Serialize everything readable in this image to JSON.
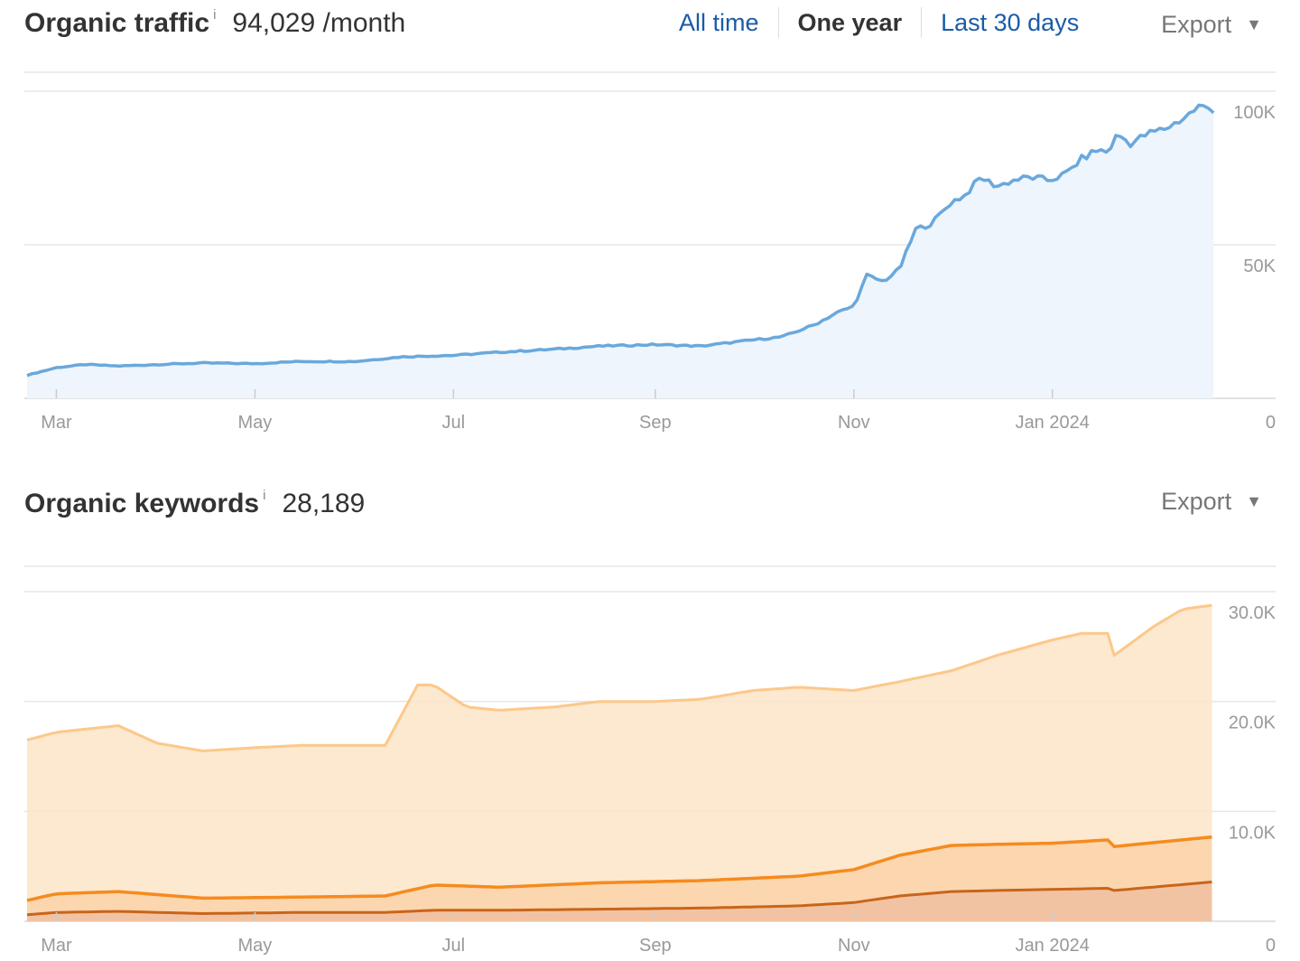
{
  "traffic_panel": {
    "title": "Organic traffic",
    "info": "i",
    "metric": "94,029 /month",
    "range_tabs": [
      {
        "label": "All time",
        "active": false
      },
      {
        "label": "One year",
        "active": true
      },
      {
        "label": "Last 30 days",
        "active": false
      }
    ],
    "export_label": "Export",
    "caret_icon": "caret-down-icon"
  },
  "keywords_panel": {
    "title": "Organic keywords",
    "info": "i",
    "metric": "28,189",
    "export_label": "Export",
    "caret_icon": "caret-down-icon"
  },
  "colors": {
    "traffic_line": "#6aa8dc",
    "traffic_fill": "#eef5fd",
    "kw_top": "#fcc88a",
    "kw_top_fill": "#fde4c8",
    "kw_mid": "#f58b1e",
    "kw_mid_fill": "#fcd2a8",
    "kw_low": "#c8651b",
    "kw_low_fill": "#f0bfa0",
    "grid": "#e6e6e6",
    "axis_text": "#999999",
    "link": "#1a5ba8"
  },
  "chart_data": [
    {
      "type": "area",
      "title": "Organic traffic",
      "x_ticks": [
        "Mar",
        "May",
        "Jul",
        "Sep",
        "Nov",
        "Jan 2024"
      ],
      "x_tick_dates": [
        "2023-03-01",
        "2023-05-01",
        "2023-07-01",
        "2023-09-01",
        "2023-11-01",
        "2024-01-01"
      ],
      "y_ticks": [
        "0",
        "50K",
        "100K"
      ],
      "y_tick_values": [
        0,
        50000,
        100000
      ],
      "ylim": [
        0,
        100000
      ],
      "xlim": [
        "2023-02-20",
        "2024-02-20"
      ],
      "grid": true,
      "series": [
        {
          "x": [
            "2023-02-20",
            "2023-03-01",
            "2023-03-10",
            "2023-03-20",
            "2023-04-01",
            "2023-04-15",
            "2023-05-01",
            "2023-05-15",
            "2023-06-01",
            "2023-06-15",
            "2023-07-01",
            "2023-07-15",
            "2023-08-01",
            "2023-08-15",
            "2023-09-01",
            "2023-09-15",
            "2023-10-01",
            "2023-10-10",
            "2023-10-20",
            "2023-10-27",
            "2023-11-01",
            "2023-11-05",
            "2023-11-10",
            "2023-11-15",
            "2023-11-20",
            "2023-11-25",
            "2023-12-01",
            "2023-12-05",
            "2023-12-10",
            "2023-12-15",
            "2023-12-20",
            "2023-12-25",
            "2023-12-31",
            "2024-01-05",
            "2024-01-10",
            "2024-01-15",
            "2024-01-18",
            "2024-01-21",
            "2024-01-25",
            "2024-01-30",
            "2024-02-05",
            "2024-02-10",
            "2024-02-15",
            "2024-02-20"
          ],
          "values": [
            7500,
            10000,
            11000,
            10500,
            11000,
            11500,
            11300,
            12000,
            12000,
            13500,
            14000,
            15000,
            16000,
            17000,
            17500,
            17000,
            19000,
            20000,
            24000,
            28000,
            30000,
            40000,
            38000,
            42000,
            55000,
            57000,
            64000,
            66000,
            72000,
            69000,
            71000,
            72000,
            71000,
            73000,
            78000,
            81000,
            80000,
            86000,
            83000,
            86000,
            88000,
            91000,
            95000,
            94000
          ]
        }
      ]
    },
    {
      "type": "area",
      "title": "Organic keywords",
      "x_ticks": [
        "Mar",
        "May",
        "Jul",
        "Sep",
        "Nov",
        "Jan 2024"
      ],
      "x_tick_dates": [
        "2023-03-01",
        "2023-05-01",
        "2023-07-01",
        "2023-09-01",
        "2023-11-01",
        "2024-01-01"
      ],
      "y_ticks": [
        "0",
        "10.0K",
        "20.0K",
        "30.0K"
      ],
      "y_tick_values": [
        0,
        10000,
        20000,
        30000
      ],
      "ylim": [
        0,
        30000
      ],
      "xlim": [
        "2023-02-20",
        "2024-02-20"
      ],
      "grid": true,
      "stacked": true,
      "series": [
        {
          "x": [
            "2023-02-20",
            "2023-03-01",
            "2023-03-20",
            "2023-04-01",
            "2023-04-15",
            "2023-05-01",
            "2023-05-15",
            "2023-06-01",
            "2023-06-10",
            "2023-06-20",
            "2023-06-25",
            "2023-07-05",
            "2023-07-15",
            "2023-08-01",
            "2023-08-15",
            "2023-09-01",
            "2023-09-15",
            "2023-10-01",
            "2023-10-15",
            "2023-11-01",
            "2023-11-15",
            "2023-12-01",
            "2023-12-15",
            "2024-01-01",
            "2024-01-10",
            "2024-01-18",
            "2024-01-20",
            "2024-02-01",
            "2024-02-10",
            "2024-02-20"
          ],
          "values": [
            16500,
            17200,
            17800,
            16200,
            15500,
            15800,
            16000,
            16000,
            16000,
            21500,
            21500,
            19500,
            19200,
            19500,
            20000,
            20000,
            20200,
            21000,
            21300,
            21000,
            21800,
            22800,
            24200,
            25600,
            26200,
            26200,
            24200,
            26800,
            28400,
            28800
          ]
        },
        {
          "x": [
            "2023-02-20",
            "2023-03-01",
            "2023-03-20",
            "2023-04-15",
            "2023-05-15",
            "2023-06-10",
            "2023-06-25",
            "2023-07-15",
            "2023-08-15",
            "2023-09-15",
            "2023-10-15",
            "2023-11-01",
            "2023-11-15",
            "2023-12-01",
            "2023-12-15",
            "2024-01-01",
            "2024-01-18",
            "2024-01-20",
            "2024-02-20"
          ],
          "values": [
            1900,
            2500,
            2700,
            2100,
            2200,
            2300,
            3300,
            3100,
            3500,
            3700,
            4100,
            4700,
            6000,
            6900,
            7000,
            7100,
            7400,
            6800,
            7700
          ]
        },
        {
          "x": [
            "2023-02-20",
            "2023-03-01",
            "2023-03-20",
            "2023-04-15",
            "2023-05-15",
            "2023-06-10",
            "2023-06-25",
            "2023-07-15",
            "2023-08-15",
            "2023-09-15",
            "2023-10-15",
            "2023-11-01",
            "2023-11-15",
            "2023-12-01",
            "2023-12-15",
            "2024-01-01",
            "2024-01-18",
            "2024-01-20",
            "2024-02-20"
          ],
          "values": [
            600,
            800,
            900,
            700,
            800,
            800,
            1000,
            1000,
            1100,
            1200,
            1400,
            1700,
            2300,
            2700,
            2800,
            2900,
            3000,
            2800,
            3600
          ]
        }
      ]
    }
  ]
}
